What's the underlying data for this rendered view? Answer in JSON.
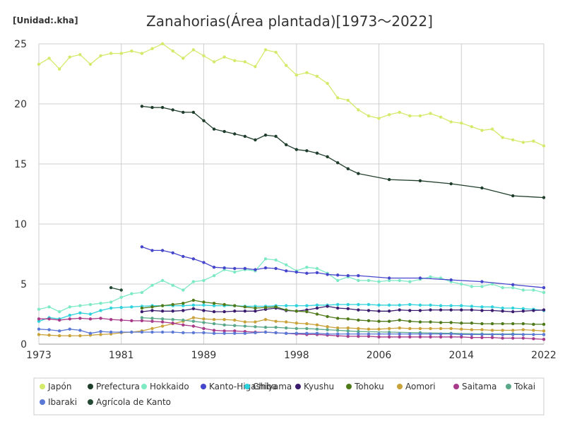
{
  "chart_data": {
    "type": "line",
    "title": "Zanahorias(Área plantada)[1973～2022]",
    "unit_label": "[Unidad:.kha]",
    "xlim": [
      1973,
      2022
    ],
    "ylim": [
      0,
      25
    ],
    "xticks": [
      1973,
      1981,
      1989,
      1998,
      2006,
      2014,
      2022
    ],
    "yticks": [
      0,
      5,
      10,
      15,
      20,
      25
    ],
    "grid": true,
    "legend_position": "bottom",
    "series": [
      {
        "name": "Japón",
        "color": "#d4ea6b",
        "x": [
          1973,
          1974,
          1975,
          1976,
          1977,
          1978,
          1979,
          1980,
          1981,
          1982,
          1983,
          1984,
          1985,
          1986,
          1987,
          1988,
          1989,
          1990,
          1991,
          1992,
          1993,
          1994,
          1995,
          1996,
          1997,
          1998,
          1999,
          2000,
          2001,
          2002,
          2003,
          2004,
          2005,
          2006,
          2007,
          2008,
          2009,
          2010,
          2011,
          2012,
          2013,
          2014,
          2015,
          2016,
          2017,
          2018,
          2019,
          2020,
          2021,
          2022
        ],
        "y": [
          23.3,
          23.8,
          22.9,
          23.9,
          24.1,
          23.3,
          24.0,
          24.2,
          24.2,
          24.4,
          24.2,
          24.6,
          25.0,
          24.4,
          23.8,
          24.5,
          24.0,
          23.5,
          23.9,
          23.6,
          23.5,
          23.1,
          24.5,
          24.3,
          23.2,
          22.4,
          22.6,
          22.3,
          21.7,
          20.5,
          20.3,
          19.5,
          19.0,
          18.8,
          19.1,
          19.3,
          19.0,
          19.0,
          19.2,
          18.9,
          18.5,
          18.4,
          18.1,
          17.8,
          17.9,
          17.2,
          17.0,
          16.8,
          16.9,
          16.5
        ]
      },
      {
        "name": "Prefectura",
        "color": "#1f3d2b",
        "x": [
          1983,
          1984,
          1985,
          1986,
          1987,
          1988,
          1989,
          1990,
          1991,
          1992,
          1993,
          1994,
          1995,
          1996,
          1997,
          1998,
          1999,
          2000,
          2001,
          2002,
          2003,
          2004,
          2007,
          2010,
          2013,
          2016,
          2019,
          2022
        ],
        "y": [
          19.8,
          19.7,
          19.7,
          19.5,
          19.3,
          19.3,
          18.6,
          17.9,
          17.7,
          17.5,
          17.3,
          17.0,
          17.4,
          17.3,
          16.6,
          16.2,
          16.1,
          15.9,
          15.6,
          15.1,
          14.6,
          14.2,
          13.7,
          13.6,
          13.35,
          13.0,
          12.35,
          12.2
        ]
      },
      {
        "name": "Hokkaido",
        "color": "#7eeac4",
        "x": [
          1973,
          1974,
          1975,
          1976,
          1977,
          1978,
          1979,
          1980,
          1981,
          1982,
          1983,
          1984,
          1985,
          1986,
          1987,
          1988,
          1989,
          1990,
          1991,
          1992,
          1993,
          1994,
          1995,
          1996,
          1997,
          1998,
          1999,
          2000,
          2001,
          2002,
          2003,
          2004,
          2005,
          2006,
          2007,
          2008,
          2009,
          2010,
          2011,
          2012,
          2013,
          2014,
          2015,
          2016,
          2017,
          2018,
          2019,
          2020,
          2021,
          2022
        ],
        "y": [
          2.9,
          3.1,
          2.7,
          3.1,
          3.2,
          3.3,
          3.4,
          3.5,
          3.9,
          4.2,
          4.3,
          4.9,
          5.3,
          4.9,
          4.5,
          5.2,
          5.3,
          5.7,
          6.2,
          6.0,
          6.2,
          6.1,
          7.1,
          7.0,
          6.6,
          6.1,
          6.4,
          6.3,
          5.9,
          5.3,
          5.6,
          5.3,
          5.3,
          5.2,
          5.3,
          5.3,
          5.2,
          5.4,
          5.6,
          5.5,
          5.2,
          5.0,
          4.8,
          4.8,
          5.0,
          4.7,
          4.7,
          4.5,
          4.5,
          4.3
        ]
      },
      {
        "name": "Kanto-Higashiyama",
        "color": "#4646cc",
        "x": [
          1983,
          1984,
          1985,
          1986,
          1987,
          1988,
          1989,
          1990,
          1991,
          1992,
          1993,
          1994,
          1995,
          1996,
          1997,
          1998,
          1999,
          2000,
          2001,
          2002,
          2003,
          2004,
          2007,
          2010,
          2013,
          2016,
          2019,
          2022
        ],
        "y": [
          8.1,
          7.8,
          7.8,
          7.6,
          7.3,
          7.1,
          6.8,
          6.4,
          6.35,
          6.3,
          6.3,
          6.2,
          6.35,
          6.3,
          6.1,
          6.0,
          5.9,
          5.95,
          5.8,
          5.75,
          5.7,
          5.7,
          5.5,
          5.5,
          5.35,
          5.2,
          4.95,
          4.7
        ]
      },
      {
        "name": "Chiba",
        "color": "#2ed2dc",
        "x": [
          1973,
          1974,
          1975,
          1976,
          1977,
          1978,
          1979,
          1980,
          1981,
          1982,
          1983,
          1984,
          1985,
          1986,
          1987,
          1988,
          1989,
          1990,
          1991,
          1992,
          1993,
          1994,
          1995,
          1996,
          1997,
          1998,
          1999,
          2000,
          2001,
          2002,
          2003,
          2004,
          2005,
          2006,
          2007,
          2008,
          2009,
          2010,
          2011,
          2012,
          2013,
          2014,
          2015,
          2016,
          2017,
          2018,
          2019,
          2020,
          2021,
          2022
        ],
        "y": [
          1.9,
          2.2,
          2.1,
          2.4,
          2.6,
          2.5,
          2.8,
          3.0,
          3.05,
          3.1,
          3.15,
          3.2,
          3.2,
          3.2,
          3.2,
          3.25,
          3.25,
          3.2,
          3.2,
          3.2,
          3.15,
          3.15,
          3.15,
          3.2,
          3.2,
          3.2,
          3.2,
          3.25,
          3.25,
          3.3,
          3.3,
          3.3,
          3.3,
          3.25,
          3.25,
          3.25,
          3.3,
          3.25,
          3.25,
          3.2,
          3.2,
          3.2,
          3.15,
          3.1,
          3.1,
          3.0,
          3.0,
          2.95,
          2.9,
          2.8
        ]
      },
      {
        "name": "Kyushu",
        "color": "#3a1b6e",
        "x": [
          1983,
          1984,
          1985,
          1986,
          1987,
          1988,
          1989,
          1990,
          1991,
          1992,
          1993,
          1994,
          1995,
          1996,
          1997,
          1998,
          1999,
          2000,
          2001,
          2002,
          2003,
          2004,
          2005,
          2006,
          2007,
          2008,
          2009,
          2010,
          2011,
          2012,
          2013,
          2014,
          2015,
          2016,
          2017,
          2018,
          2019,
          2020,
          2021,
          2022
        ],
        "y": [
          2.7,
          2.8,
          2.75,
          2.75,
          2.8,
          2.95,
          2.8,
          2.7,
          2.7,
          2.75,
          2.75,
          2.75,
          2.9,
          3.0,
          2.8,
          2.75,
          2.85,
          3.0,
          3.15,
          3.0,
          2.95,
          2.85,
          2.8,
          2.75,
          2.75,
          2.85,
          2.8,
          2.8,
          2.85,
          2.85,
          2.85,
          2.85,
          2.85,
          2.8,
          2.8,
          2.75,
          2.7,
          2.75,
          2.8,
          2.85
        ]
      },
      {
        "name": "Tohoku",
        "color": "#4f7a1a",
        "x": [
          1983,
          1984,
          1985,
          1986,
          1987,
          1988,
          1989,
          1990,
          1991,
          1992,
          1993,
          1994,
          1995,
          1996,
          1997,
          1998,
          1999,
          2000,
          2001,
          2002,
          2003,
          2004,
          2005,
          2006,
          2007,
          2008,
          2009,
          2010,
          2011,
          2012,
          2013,
          2014,
          2015,
          2016,
          2017,
          2018,
          2019,
          2020,
          2021,
          2022
        ],
        "y": [
          3.0,
          3.1,
          3.2,
          3.3,
          3.4,
          3.65,
          3.5,
          3.4,
          3.3,
          3.2,
          3.1,
          3.0,
          3.05,
          3.1,
          2.85,
          2.75,
          2.7,
          2.5,
          2.3,
          2.15,
          2.1,
          2.0,
          1.95,
          1.9,
          1.9,
          2.0,
          1.9,
          1.85,
          1.85,
          1.8,
          1.8,
          1.75,
          1.75,
          1.7,
          1.7,
          1.7,
          1.7,
          1.7,
          1.65,
          1.65
        ]
      },
      {
        "name": "Aomori",
        "color": "#c9a23a",
        "x": [
          1973,
          1974,
          1975,
          1976,
          1977,
          1978,
          1979,
          1980,
          1981,
          1982,
          1983,
          1984,
          1985,
          1986,
          1987,
          1988,
          1989,
          1990,
          1991,
          1992,
          1993,
          1994,
          1995,
          1996,
          1997,
          1998,
          1999,
          2000,
          2001,
          2002,
          2003,
          2004,
          2005,
          2006,
          2007,
          2008,
          2009,
          2010,
          2011,
          2012,
          2013,
          2014,
          2015,
          2016,
          2017,
          2018,
          2019,
          2020,
          2021,
          2022
        ],
        "y": [
          0.8,
          0.75,
          0.7,
          0.7,
          0.7,
          0.75,
          0.8,
          0.85,
          0.95,
          1.0,
          1.1,
          1.3,
          1.5,
          1.7,
          1.9,
          2.2,
          2.1,
          2.05,
          2.05,
          2.0,
          1.85,
          1.85,
          2.05,
          1.9,
          1.85,
          1.75,
          1.7,
          1.6,
          1.45,
          1.35,
          1.35,
          1.3,
          1.25,
          1.25,
          1.3,
          1.35,
          1.3,
          1.3,
          1.3,
          1.3,
          1.3,
          1.25,
          1.2,
          1.2,
          1.15,
          1.15,
          1.15,
          1.2,
          1.15,
          1.1
        ]
      },
      {
        "name": "Saitama",
        "color": "#a83a8a",
        "x": [
          1973,
          1974,
          1975,
          1976,
          1977,
          1978,
          1979,
          1980,
          1981,
          1982,
          1983,
          1984,
          1985,
          1986,
          1987,
          1988,
          1989,
          1990,
          1991,
          1992,
          1993,
          1994,
          1995,
          1996,
          1997,
          1998,
          1999,
          2000,
          2001,
          2002,
          2003,
          2004,
          2005,
          2006,
          2007,
          2008,
          2009,
          2010,
          2011,
          2012,
          2013,
          2014,
          2015,
          2016,
          2017,
          2018,
          2019,
          2020,
          2021,
          2022
        ],
        "y": [
          2.1,
          2.1,
          2.0,
          2.1,
          2.15,
          2.1,
          2.15,
          2.05,
          2.0,
          1.95,
          1.95,
          1.9,
          1.85,
          1.75,
          1.6,
          1.5,
          1.3,
          1.15,
          1.1,
          1.1,
          1.05,
          1.0,
          1.0,
          0.95,
          0.9,
          0.85,
          0.8,
          0.8,
          0.75,
          0.7,
          0.65,
          0.65,
          0.65,
          0.6,
          0.6,
          0.6,
          0.6,
          0.6,
          0.6,
          0.6,
          0.6,
          0.6,
          0.55,
          0.55,
          0.55,
          0.5,
          0.5,
          0.5,
          0.45,
          0.4
        ]
      },
      {
        "name": "Tokai",
        "color": "#5aa88a",
        "x": [
          1983,
          1984,
          1985,
          1986,
          1987,
          1988,
          1989,
          1990,
          1991,
          1992,
          1993,
          1994,
          1995,
          1996,
          1997,
          1998,
          1999,
          2000,
          2001,
          2002,
          2003,
          2004,
          2007,
          2010,
          2013,
          2016,
          2019,
          2022
        ],
        "y": [
          2.2,
          2.15,
          2.1,
          2.05,
          2.0,
          1.9,
          1.8,
          1.7,
          1.6,
          1.55,
          1.5,
          1.45,
          1.4,
          1.4,
          1.35,
          1.3,
          1.3,
          1.25,
          1.2,
          1.15,
          1.1,
          1.05,
          1.0,
          0.95,
          0.9,
          0.85,
          0.85,
          0.8
        ]
      },
      {
        "name": "Ibaraki",
        "color": "#5a78d6",
        "x": [
          1973,
          1974,
          1975,
          1976,
          1977,
          1978,
          1979,
          1980,
          1981,
          1982,
          1983,
          1984,
          1985,
          1986,
          1987,
          1988,
          1989,
          1990,
          1991,
          1992,
          1993,
          1994,
          1995,
          1996,
          1997,
          1998,
          1999,
          2000,
          2001,
          2002,
          2003,
          2004,
          2005,
          2006,
          2007,
          2008,
          2009,
          2010,
          2011,
          2012,
          2013,
          2014,
          2015,
          2016,
          2017,
          2018,
          2019,
          2020,
          2021,
          2022
        ],
        "y": [
          1.25,
          1.2,
          1.1,
          1.25,
          1.15,
          0.9,
          1.05,
          1.0,
          1.0,
          1.0,
          1.0,
          1.0,
          1.0,
          1.0,
          0.95,
          0.95,
          0.95,
          0.9,
          0.9,
          0.9,
          0.9,
          0.95,
          1.0,
          0.95,
          0.9,
          0.9,
          0.9,
          0.9,
          0.85,
          0.85,
          0.85,
          0.85,
          0.85,
          0.85,
          0.85,
          0.85,
          0.85,
          0.85,
          0.85,
          0.85,
          0.85,
          0.8,
          0.8,
          0.8,
          0.8,
          0.8,
          0.8,
          0.8,
          0.8,
          0.8
        ]
      },
      {
        "name": "Agrícola de Kanto",
        "color": "#234a34",
        "x": [
          1980,
          1981
        ],
        "y": [
          4.7,
          4.5
        ]
      }
    ]
  }
}
